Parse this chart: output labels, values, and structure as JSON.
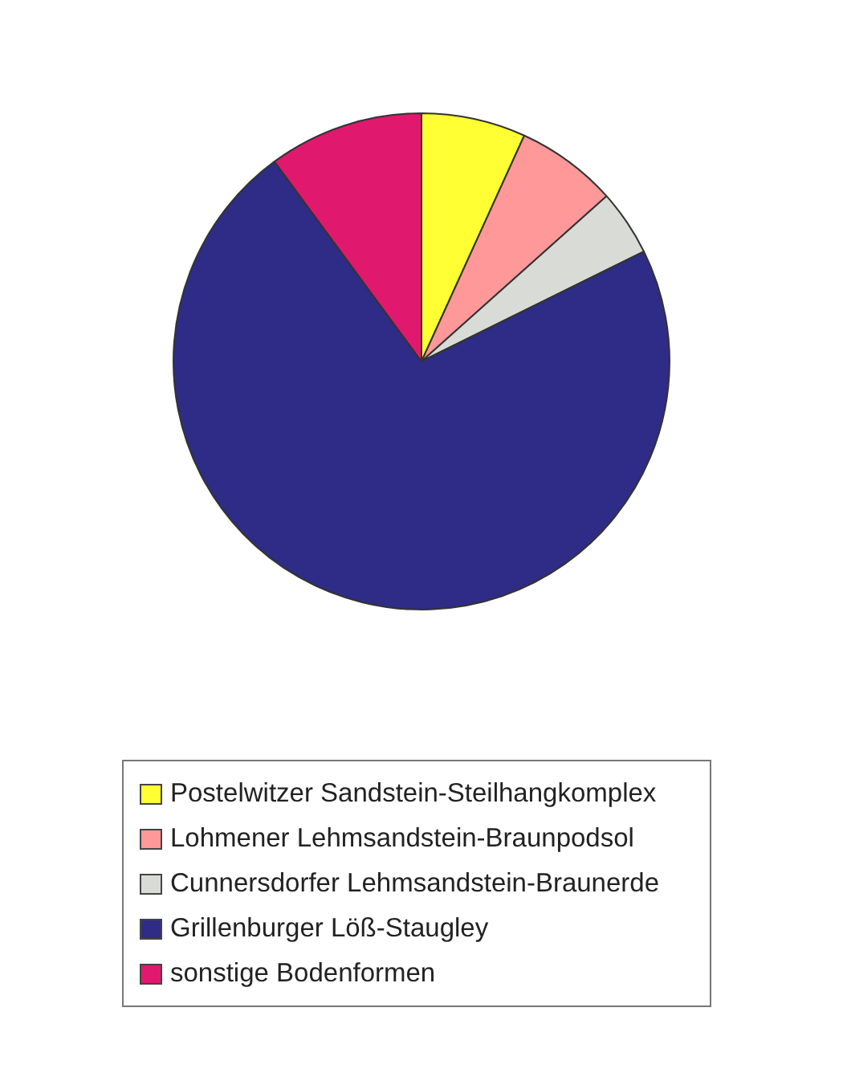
{
  "chart_data": {
    "type": "pie",
    "categories": [
      "Postelwitzer Sandstein-Steilhangkomplex",
      "Lohmener Lehmsandstein-Braunpodsol",
      "Cunnersdorfer Lehmsandstein-Braunerde",
      "Grillenburger Löß-Staugley",
      "sonstige Bodenformen"
    ],
    "values": [
      6.8,
      6.6,
      4.3,
      72.2,
      10.1
    ],
    "colors": [
      "#ffff33",
      "#ff9999",
      "#d9dcd6",
      "#2e2c86",
      "#e0196e"
    ],
    "legend": "bottom"
  }
}
